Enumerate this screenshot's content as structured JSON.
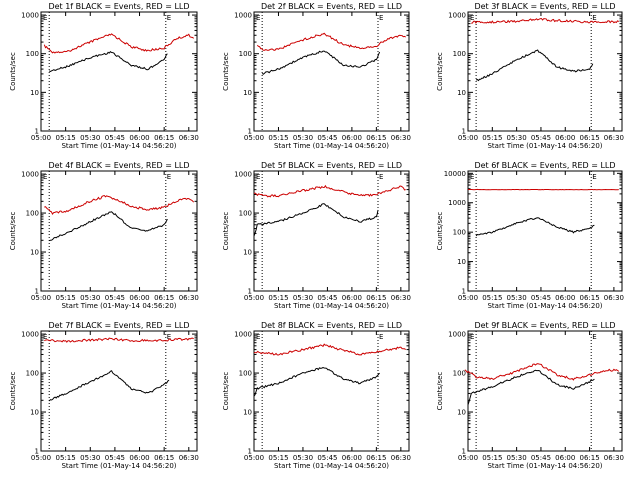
{
  "chart_data": [
    {
      "type": "line",
      "title": "Det 1f BLACK = Events, RED = LLD",
      "xlabel": "Start Time (01-May-14 04:56:20)",
      "ylabel": "Counts/sec",
      "x_tick_labels": [
        "05:00",
        "05:15",
        "05:30",
        "05:45",
        "06:00",
        "06:15",
        "06:30"
      ],
      "y_tick_labels": [
        "1",
        "10",
        "100",
        "1000"
      ],
      "ylim": [
        1,
        1200
      ],
      "y_scale": "log",
      "corner_labels": [
        "E",
        "E"
      ],
      "vertical_markers": [
        "05:05",
        "06:16"
      ],
      "series": [
        {
          "color": "#cc0000",
          "points": [
            [
              "05:02",
              160
            ],
            [
              "05:07",
              110
            ],
            [
              "05:15",
              110
            ],
            [
              "05:30",
              200
            ],
            [
              "05:43",
              320
            ],
            [
              "05:55",
              150
            ],
            [
              "06:05",
              120
            ],
            [
              "06:15",
              140
            ],
            [
              "06:22",
              240
            ],
            [
              "06:30",
              300
            ],
            [
              "06:33",
              250
            ]
          ]
        },
        {
          "color": "#000000",
          "points": [
            [
              "05:05",
              35
            ],
            [
              "05:15",
              45
            ],
            [
              "05:30",
              80
            ],
            [
              "05:43",
              110
            ],
            [
              "05:55",
              50
            ],
            [
              "06:05",
              40
            ],
            [
              "06:15",
              70
            ],
            [
              "06:17",
              100
            ]
          ]
        }
      ]
    },
    {
      "type": "line",
      "title": "Det 2f BLACK = Events, RED = LLD",
      "xlabel": "Start Time (01-May-14 04:56:20)",
      "ylabel": "Counts/sec",
      "x_tick_labels": [
        "05:00",
        "05:15",
        "05:30",
        "05:45",
        "06:00",
        "06:15",
        "06:30"
      ],
      "y_tick_labels": [
        "1",
        "10",
        "100",
        "1000"
      ],
      "ylim": [
        1,
        1200
      ],
      "y_scale": "log",
      "corner_labels": [
        "E",
        "E"
      ],
      "vertical_markers": [
        "05:05",
        "06:16"
      ],
      "series": [
        {
          "color": "#cc0000",
          "points": [
            [
              "05:02",
              160
            ],
            [
              "05:07",
              120
            ],
            [
              "05:15",
              130
            ],
            [
              "05:30",
              230
            ],
            [
              "05:43",
              330
            ],
            [
              "05:55",
              170
            ],
            [
              "06:05",
              140
            ],
            [
              "06:15",
              160
            ],
            [
              "06:22",
              240
            ],
            [
              "06:30",
              300
            ],
            [
              "06:33",
              270
            ]
          ]
        },
        {
          "color": "#000000",
          "points": [
            [
              "05:05",
              30
            ],
            [
              "05:15",
              40
            ],
            [
              "05:30",
              80
            ],
            [
              "05:43",
              120
            ],
            [
              "05:55",
              50
            ],
            [
              "06:05",
              45
            ],
            [
              "06:15",
              70
            ],
            [
              "06:17",
              110
            ]
          ]
        }
      ]
    },
    {
      "type": "line",
      "title": "Det 3f BLACK = Events, RED = LLD",
      "xlabel": "Start Time (01-May-14 04:56:20)",
      "ylabel": "Counts/sec",
      "x_tick_labels": [
        "05:00",
        "05:15",
        "05:30",
        "05:45",
        "06:00",
        "06:15",
        "06:30"
      ],
      "y_tick_labels": [
        "1",
        "10",
        "100",
        "1000"
      ],
      "ylim": [
        1,
        1200
      ],
      "y_scale": "log",
      "corner_labels": [
        "E",
        "E"
      ],
      "vertical_markers": [
        "05:05",
        "06:16"
      ],
      "series": [
        {
          "color": "#cc0000",
          "points": [
            [
              "05:02",
              650
            ],
            [
              "05:15",
              660
            ],
            [
              "05:30",
              700
            ],
            [
              "05:43",
              780
            ],
            [
              "05:55",
              720
            ],
            [
              "06:15",
              650
            ],
            [
              "06:33",
              680
            ]
          ]
        },
        {
          "color": "#000000",
          "points": [
            [
              "05:05",
              20
            ],
            [
              "05:15",
              30
            ],
            [
              "05:30",
              70
            ],
            [
              "05:43",
              120
            ],
            [
              "05:55",
              45
            ],
            [
              "06:05",
              35
            ],
            [
              "06:15",
              40
            ],
            [
              "06:17",
              55
            ]
          ]
        }
      ]
    },
    {
      "type": "line",
      "title": "Det 4f BLACK = Events, RED = LLD",
      "xlabel": "Start Time (01-May-14 04:56:20)",
      "ylabel": "Counts/sec",
      "x_tick_labels": [
        "05:00",
        "05:15",
        "05:30",
        "05:45",
        "06:00",
        "06:15",
        "06:30"
      ],
      "y_tick_labels": [
        "1",
        "10",
        "100",
        "1000"
      ],
      "ylim": [
        1,
        1200
      ],
      "y_scale": "log",
      "corner_labels": [
        "E",
        "E"
      ],
      "vertical_markers": [
        "05:05",
        "06:16"
      ],
      "series": [
        {
          "color": "#cc0000",
          "points": [
            [
              "05:02",
              150
            ],
            [
              "05:07",
              100
            ],
            [
              "05:15",
              110
            ],
            [
              "05:30",
              200
            ],
            [
              "05:40",
              280
            ],
            [
              "05:55",
              150
            ],
            [
              "06:05",
              120
            ],
            [
              "06:15",
              140
            ],
            [
              "06:22",
              200
            ],
            [
              "06:30",
              240
            ],
            [
              "06:33",
              190
            ]
          ]
        },
        {
          "color": "#000000",
          "points": [
            [
              "05:05",
              20
            ],
            [
              "05:15",
              30
            ],
            [
              "05:30",
              60
            ],
            [
              "05:43",
              110
            ],
            [
              "05:55",
              40
            ],
            [
              "06:05",
              35
            ],
            [
              "06:15",
              50
            ],
            [
              "06:17",
              70
            ]
          ]
        }
      ]
    },
    {
      "type": "line",
      "title": "Det 5f BLACK = Events, RED = LLD",
      "xlabel": "Start Time (01-May-14 04:56:20)",
      "ylabel": "Counts/sec",
      "x_tick_labels": [
        "05:00",
        "05:15",
        "05:30",
        "05:45",
        "06:00",
        "06:15",
        "06:30"
      ],
      "y_tick_labels": [
        "1",
        "10",
        "100",
        "1000"
      ],
      "ylim": [
        1,
        1200
      ],
      "y_scale": "log",
      "corner_labels": [
        "E",
        "E"
      ],
      "vertical_markers": [
        "05:05",
        "06:16"
      ],
      "series": [
        {
          "color": "#cc0000",
          "points": [
            [
              "05:00",
              320
            ],
            [
              "05:07",
              270
            ],
            [
              "05:15",
              280
            ],
            [
              "05:30",
              380
            ],
            [
              "05:43",
              480
            ],
            [
              "05:55",
              350
            ],
            [
              "06:05",
              280
            ],
            [
              "06:15",
              300
            ],
            [
              "06:22",
              380
            ],
            [
              "06:30",
              470
            ],
            [
              "06:33",
              400
            ]
          ]
        },
        {
          "color": "#000000",
          "points": [
            [
              "05:00",
              25
            ],
            [
              "05:02",
              50
            ],
            [
              "05:15",
              60
            ],
            [
              "05:30",
              100
            ],
            [
              "05:43",
              170
            ],
            [
              "05:55",
              80
            ],
            [
              "06:05",
              60
            ],
            [
              "06:15",
              80
            ],
            [
              "06:16",
              120
            ]
          ]
        }
      ]
    },
    {
      "type": "line",
      "title": "Det 6f BLACK = Events, RED = LLD",
      "xlabel": "Start Time (01-May-14 04:56:20)",
      "ylabel": "Counts/sec",
      "x_tick_labels": [
        "05:00",
        "05:15",
        "05:30",
        "05:45",
        "06:00",
        "06:15",
        "06:30"
      ],
      "y_tick_labels": [
        "1",
        "10",
        "100",
        "1000",
        "10000"
      ],
      "ylim": [
        1,
        12000
      ],
      "y_scale": "log",
      "corner_labels": [
        "E",
        "E"
      ],
      "vertical_markers": [
        "05:05",
        "06:16"
      ],
      "series": [
        {
          "color": "#cc0000",
          "points": [
            [
              "05:00",
              2800
            ],
            [
              "06:33",
              2800
            ]
          ]
        },
        {
          "color": "#000000",
          "points": [
            [
              "05:05",
              80
            ],
            [
              "05:15",
              100
            ],
            [
              "05:30",
              200
            ],
            [
              "05:43",
              320
            ],
            [
              "05:55",
              150
            ],
            [
              "06:05",
              100
            ],
            [
              "06:15",
              140
            ],
            [
              "06:18",
              170
            ]
          ]
        }
      ]
    },
    {
      "type": "line",
      "title": "Det 7f BLACK = Events, RED = LLD",
      "xlabel": "Start Time (01-May-14 04:56:20)",
      "ylabel": "Counts/sec",
      "x_tick_labels": [
        "05:00",
        "05:15",
        "05:30",
        "05:45",
        "06:00",
        "06:15",
        "06:30"
      ],
      "y_tick_labels": [
        "1",
        "10",
        "100",
        "1000"
      ],
      "ylim": [
        1,
        1200
      ],
      "y_scale": "log",
      "corner_labels": [
        "E",
        "E"
      ],
      "vertical_markers": [
        "05:05",
        "06:16"
      ],
      "series": [
        {
          "color": "#cc0000",
          "points": [
            [
              "05:02",
              700
            ],
            [
              "05:15",
              650
            ],
            [
              "05:30",
              700
            ],
            [
              "05:43",
              750
            ],
            [
              "05:55",
              680
            ],
            [
              "06:15",
              700
            ],
            [
              "06:33",
              760
            ]
          ]
        },
        {
          "color": "#000000",
          "points": [
            [
              "05:05",
              20
            ],
            [
              "05:15",
              30
            ],
            [
              "05:30",
              60
            ],
            [
              "05:43",
              110
            ],
            [
              "05:55",
              40
            ],
            [
              "06:05",
              30
            ],
            [
              "06:15",
              50
            ],
            [
              "06:18",
              65
            ]
          ]
        }
      ]
    },
    {
      "type": "line",
      "title": "Det 8f BLACK = Events, RED = LLD",
      "xlabel": "Start Time (01-May-14 04:56:20)",
      "ylabel": "Counts/sec",
      "x_tick_labels": [
        "05:00",
        "05:15",
        "05:30",
        "05:45",
        "06:00",
        "06:15",
        "06:30"
      ],
      "y_tick_labels": [
        "1",
        "10",
        "100",
        "1000"
      ],
      "ylim": [
        1,
        1200
      ],
      "y_scale": "log",
      "corner_labels": [
        "E",
        "E"
      ],
      "vertical_markers": [
        "05:05",
        "06:16"
      ],
      "series": [
        {
          "color": "#cc0000",
          "points": [
            [
              "05:00",
              350
            ],
            [
              "05:15",
              300
            ],
            [
              "05:30",
              400
            ],
            [
              "05:43",
              520
            ],
            [
              "05:55",
              380
            ],
            [
              "06:05",
              300
            ],
            [
              "06:15",
              350
            ],
            [
              "06:22",
              400
            ],
            [
              "06:30",
              450
            ],
            [
              "06:33",
              400
            ]
          ]
        },
        {
          "color": "#000000",
          "points": [
            [
              "05:00",
              25
            ],
            [
              "05:02",
              40
            ],
            [
              "05:15",
              55
            ],
            [
              "05:30",
              100
            ],
            [
              "05:43",
              140
            ],
            [
              "05:55",
              70
            ],
            [
              "06:05",
              55
            ],
            [
              "06:15",
              80
            ],
            [
              "06:17",
              100
            ]
          ]
        }
      ]
    },
    {
      "type": "line",
      "title": "Det 9f BLACK = Events, RED = LLD",
      "xlabel": "Start Time (01-May-14 04:56:20)",
      "ylabel": "Counts/sec",
      "x_tick_labels": [
        "05:00",
        "05:15",
        "05:30",
        "05:45",
        "06:00",
        "06:15",
        "06:30"
      ],
      "y_tick_labels": [
        "1",
        "10",
        "100",
        "1000"
      ],
      "ylim": [
        1,
        1200
      ],
      "y_scale": "log",
      "corner_labels": [
        "E",
        "E"
      ],
      "vertical_markers": [
        "05:05",
        "06:16"
      ],
      "series": [
        {
          "color": "#cc0000",
          "points": [
            [
              "04:58",
              120
            ],
            [
              "05:05",
              80
            ],
            [
              "05:15",
              70
            ],
            [
              "05:30",
              110
            ],
            [
              "05:43",
              180
            ],
            [
              "05:55",
              90
            ],
            [
              "06:05",
              70
            ],
            [
              "06:15",
              90
            ],
            [
              "06:22",
              110
            ],
            [
              "06:30",
              120
            ],
            [
              "06:33",
              110
            ]
          ]
        },
        {
          "color": "#000000",
          "points": [
            [
              "05:00",
              15
            ],
            [
              "05:02",
              30
            ],
            [
              "05:15",
              45
            ],
            [
              "05:30",
              80
            ],
            [
              "05:43",
              120
            ],
            [
              "05:55",
              50
            ],
            [
              "06:05",
              40
            ],
            [
              "06:15",
              60
            ],
            [
              "06:18",
              70
            ]
          ]
        }
      ]
    }
  ]
}
